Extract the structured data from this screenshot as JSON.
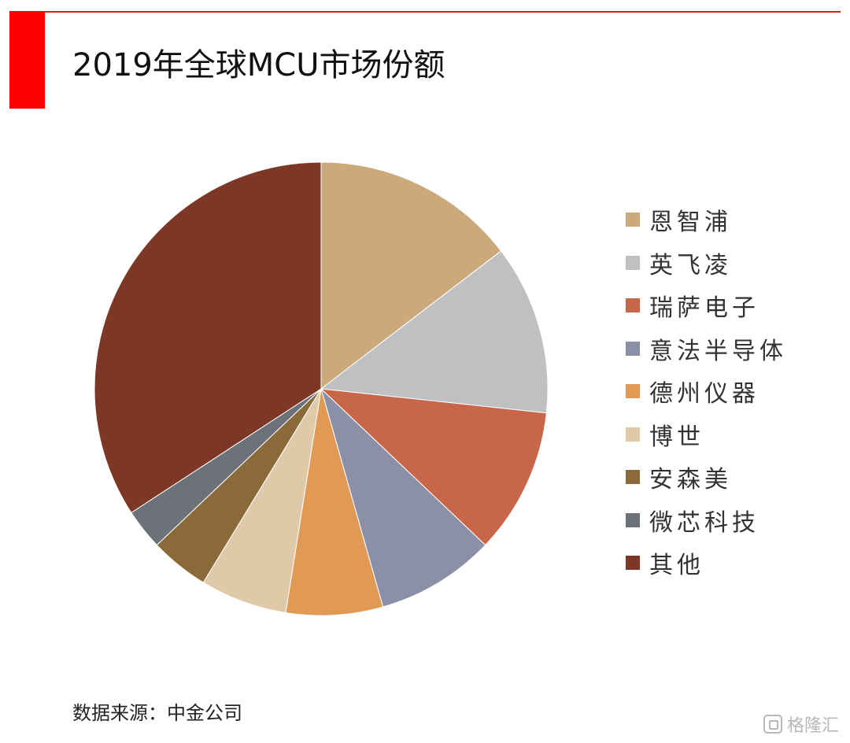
{
  "header": {
    "title": "2019年全球MCU市场份额",
    "accent_color": "#ff0000"
  },
  "footer": {
    "source": "数据来源：中金公司",
    "watermark": "格隆汇"
  },
  "chart_data": {
    "type": "pie",
    "title": "2019年全球MCU市场份额",
    "start_angle_deg": 0,
    "direction": "clockwise",
    "legend_position": "right",
    "slices": [
      {
        "label": "恩智浦",
        "value": 14.6,
        "color": "#cba97a"
      },
      {
        "label": "英飞凌",
        "value": 12.1,
        "color": "#bfc0c2"
      },
      {
        "label": "瑞萨电子",
        "value": 10.4,
        "color": "#c8664a"
      },
      {
        "label": "意法半导体",
        "value": 8.5,
        "color": "#8b90a7"
      },
      {
        "label": "德州仪器",
        "value": 6.9,
        "color": "#e09a55"
      },
      {
        "label": "博世",
        "value": 6.2,
        "color": "#e0c9a8"
      },
      {
        "label": "安森美",
        "value": 4.2,
        "color": "#8b6a3a"
      },
      {
        "label": "微芯科技",
        "value": 2.9,
        "color": "#6d7278"
      },
      {
        "label": "其他",
        "value": 34.2,
        "color": "#7c3726"
      }
    ]
  }
}
